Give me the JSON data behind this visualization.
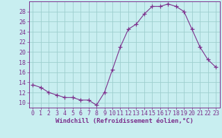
{
  "x": [
    0,
    1,
    2,
    3,
    4,
    5,
    6,
    7,
    8,
    9,
    10,
    11,
    12,
    13,
    14,
    15,
    16,
    17,
    18,
    19,
    20,
    21,
    22,
    23
  ],
  "y": [
    13.5,
    13.0,
    12.0,
    11.5,
    11.0,
    11.0,
    10.5,
    10.5,
    9.5,
    12.0,
    16.5,
    21.0,
    24.5,
    25.5,
    27.5,
    29.0,
    29.0,
    29.5,
    29.0,
    28.0,
    24.5,
    21.0,
    18.5,
    17.0
  ],
  "line_color": "#7B2D8B",
  "marker": "+",
  "marker_size": 4,
  "marker_color": "#7B2D8B",
  "bg_color": "#c8eef0",
  "grid_color": "#9ecece",
  "xlabel": "Windchill (Refroidissement éolien,°C)",
  "ylabel": "",
  "ylim": [
    9,
    30
  ],
  "xlim": [
    -0.5,
    23.5
  ],
  "yticks": [
    10,
    12,
    14,
    16,
    18,
    20,
    22,
    24,
    26,
    28
  ],
  "xticks": [
    0,
    1,
    2,
    3,
    4,
    5,
    6,
    7,
    8,
    9,
    10,
    11,
    12,
    13,
    14,
    15,
    16,
    17,
    18,
    19,
    20,
    21,
    22,
    23
  ],
  "tick_color": "#7B2D8B",
  "axis_color": "#7B2D8B",
  "label_fontsize": 6.5,
  "tick_fontsize": 6.0
}
